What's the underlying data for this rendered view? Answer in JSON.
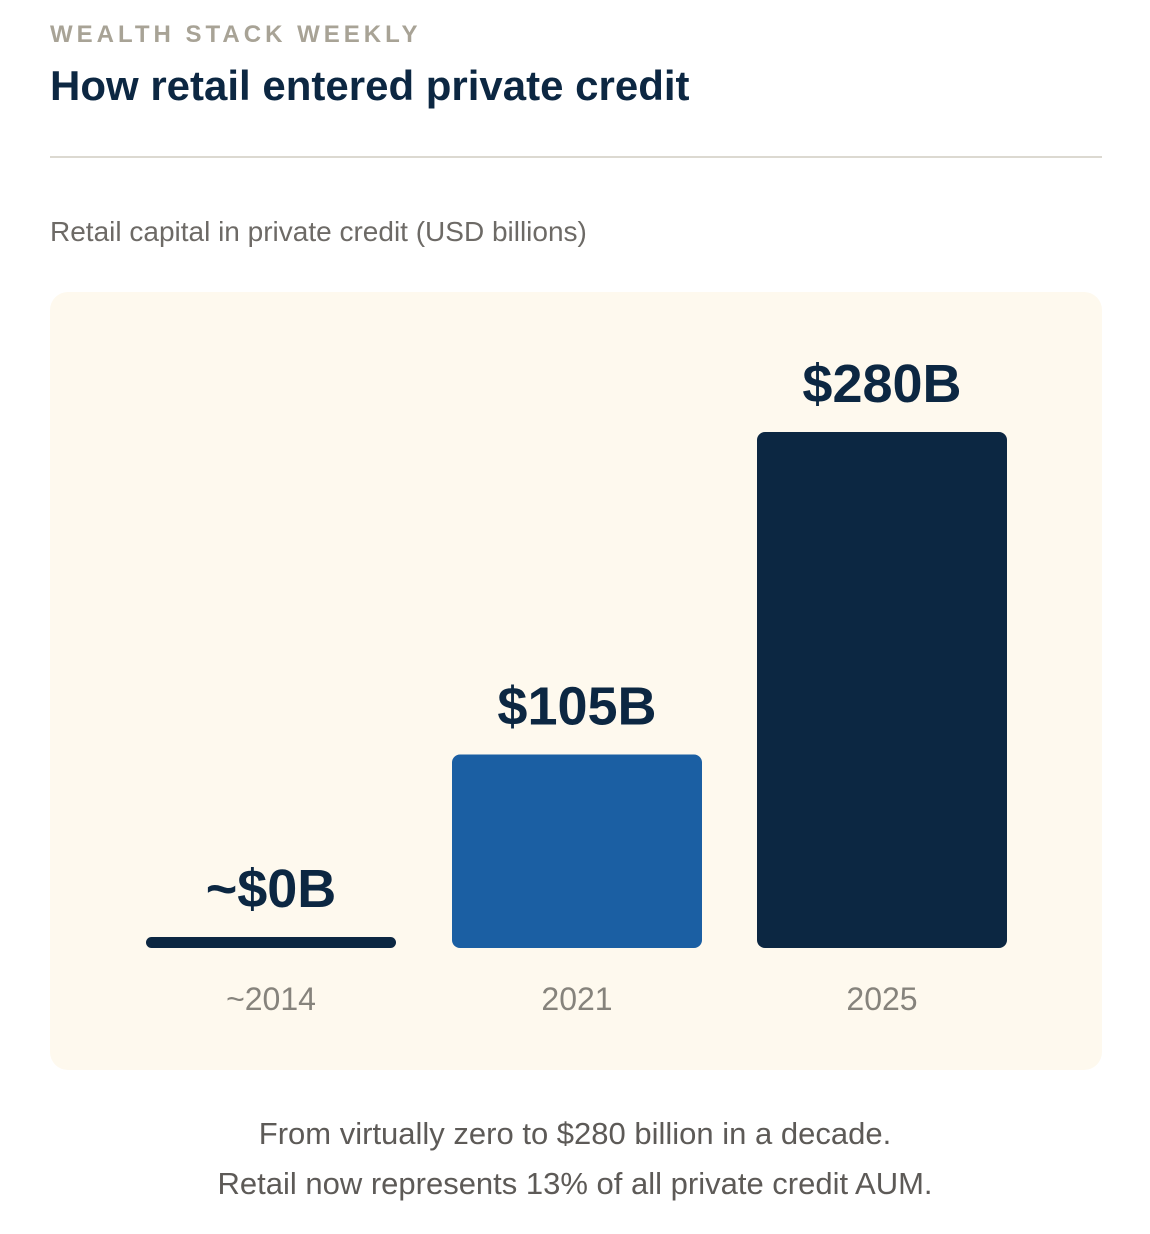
{
  "header": {
    "eyebrow": "WEALTH STACK WEEKLY",
    "title": "How retail entered private credit"
  },
  "chart_data": {
    "type": "bar",
    "title": "Retail capital in private credit (USD billions)",
    "categories": [
      "~2014",
      "2021",
      "2025"
    ],
    "values": [
      0,
      105,
      280
    ],
    "value_labels": [
      "~$0B",
      "$105B",
      "$280B"
    ],
    "colors": [
      "#0c2742",
      "#1b5fa3",
      "#0c2742"
    ],
    "ylim": [
      0,
      280
    ],
    "grid": false,
    "xlabel": "",
    "ylabel": ""
  },
  "caption": {
    "line1": "From virtually zero to $280 billion in a decade.",
    "line2": "Retail now represents 13% of all private credit AUM."
  },
  "colors": {
    "panel_background": "#fef9ee",
    "title": "#0c2742",
    "eyebrow": "#a8a396"
  }
}
